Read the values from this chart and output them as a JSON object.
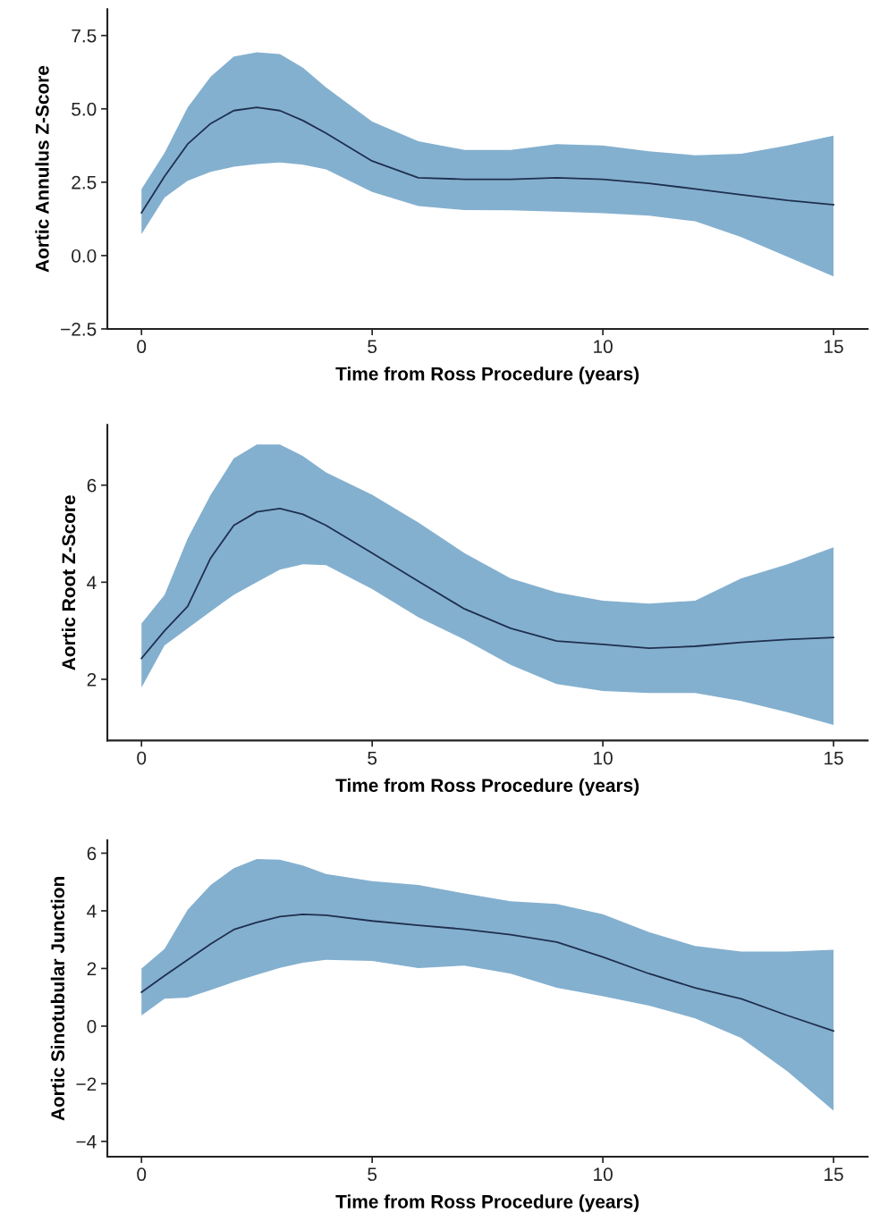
{
  "chart_data": [
    {
      "type": "line",
      "ylabel": "Aortic Annulus Z-Score",
      "xlabel": "Time from Ross Procedure (years)",
      "xlim": [
        -0.74,
        15.74
      ],
      "xticks": [
        0,
        5,
        10,
        15
      ],
      "ylim": [
        -2.5,
        8.4
      ],
      "yticks": [
        {
          "value": -2.5,
          "label": "−2.5"
        },
        {
          "value": 0,
          "label": "0.0"
        },
        {
          "value": 2.5,
          "label": "2.5"
        },
        {
          "value": 5,
          "label": "5.0"
        },
        {
          "value": 7.5,
          "label": "7.5"
        }
      ],
      "grid": false,
      "marker": "none",
      "line_style": "solid",
      "series": [
        {
          "color": "#1f2f4f",
          "x": [
            0,
            0.5,
            1,
            1.5,
            2,
            2.5,
            3,
            3.5,
            4,
            5,
            6,
            7,
            8,
            9,
            10,
            11,
            12,
            13,
            14,
            15
          ],
          "values": [
            1.46,
            2.7,
            3.8,
            4.5,
            4.94,
            5.05,
            4.94,
            4.6,
            4.17,
            3.22,
            2.65,
            2.6,
            2.6,
            2.65,
            2.6,
            2.46,
            2.27,
            2.07,
            1.88,
            1.73
          ],
          "upper": [
            2.27,
            3.5,
            5.05,
            6.1,
            6.78,
            6.93,
            6.87,
            6.4,
            5.73,
            4.57,
            3.9,
            3.6,
            3.6,
            3.8,
            3.75,
            3.55,
            3.42,
            3.47,
            3.75,
            4.09
          ],
          "lower": [
            0.73,
            1.98,
            2.55,
            2.85,
            3.03,
            3.12,
            3.17,
            3.1,
            2.94,
            2.17,
            1.69,
            1.55,
            1.54,
            1.5,
            1.44,
            1.36,
            1.17,
            0.63,
            -0.04,
            -0.71
          ]
        }
      ]
    },
    {
      "type": "line",
      "ylabel": "Aortic Root Z-Score",
      "xlabel": "Time from Ross Procedure (years)",
      "xlim": [
        -0.74,
        15.74
      ],
      "xticks": [
        0,
        5,
        10,
        15
      ],
      "ylim": [
        0.74,
        7.24
      ],
      "yticks": [
        2,
        4,
        6
      ],
      "grid": false,
      "marker": "none",
      "line_style": "solid",
      "series": [
        {
          "color": "#1f2f4f",
          "x": [
            0,
            0.5,
            1,
            1.5,
            2,
            2.5,
            3,
            3.5,
            4,
            5,
            6,
            7,
            8,
            9,
            10,
            11,
            12,
            13,
            14,
            15
          ],
          "values": [
            2.43,
            3.0,
            3.5,
            4.5,
            5.17,
            5.45,
            5.52,
            5.4,
            5.17,
            4.6,
            4.02,
            3.45,
            3.05,
            2.79,
            2.72,
            2.64,
            2.68,
            2.76,
            2.82,
            2.86
          ],
          "upper": [
            3.15,
            3.74,
            4.9,
            5.8,
            6.55,
            6.84,
            6.84,
            6.6,
            6.26,
            5.8,
            5.23,
            4.6,
            4.08,
            3.79,
            3.62,
            3.56,
            3.62,
            4.08,
            4.37,
            4.72
          ],
          "lower": [
            1.83,
            2.7,
            3.05,
            3.4,
            3.74,
            4.0,
            4.26,
            4.37,
            4.35,
            3.86,
            3.28,
            2.82,
            2.3,
            1.9,
            1.76,
            1.72,
            1.72,
            1.55,
            1.32,
            1.06
          ]
        }
      ]
    },
    {
      "type": "line",
      "ylabel": "Aortic Sinotubular Junction",
      "xlabel": "Time from Ross Procedure (years)",
      "xlim": [
        -0.74,
        15.74
      ],
      "xticks": [
        0,
        5,
        10,
        15
      ],
      "ylim": [
        -4.53,
        6.45
      ],
      "yticks": [
        {
          "value": -4,
          "label": "−4"
        },
        {
          "value": -2,
          "label": "−2"
        },
        0,
        2,
        4,
        6
      ],
      "grid": false,
      "marker": "none",
      "line_style": "solid",
      "series": [
        {
          "color": "#1f2f4f",
          "x": [
            0,
            0.5,
            1,
            1.5,
            2,
            2.5,
            3,
            3.5,
            4,
            5,
            6,
            7,
            8,
            9,
            10,
            11,
            12,
            13,
            14,
            15
          ],
          "values": [
            1.18,
            1.75,
            2.3,
            2.85,
            3.35,
            3.6,
            3.8,
            3.88,
            3.85,
            3.65,
            3.5,
            3.36,
            3.17,
            2.92,
            2.4,
            1.82,
            1.33,
            0.95,
            0.37,
            -0.17
          ],
          "upper": [
            2.0,
            2.68,
            4.04,
            4.9,
            5.48,
            5.8,
            5.77,
            5.57,
            5.28,
            5.03,
            4.9,
            4.6,
            4.33,
            4.24,
            3.88,
            3.26,
            2.78,
            2.59,
            2.59,
            2.65
          ],
          "lower": [
            0.37,
            0.95,
            0.99,
            1.25,
            1.53,
            1.78,
            2.02,
            2.2,
            2.3,
            2.26,
            2.01,
            2.1,
            1.82,
            1.33,
            1.04,
            0.71,
            0.27,
            -0.41,
            -1.57,
            -2.93
          ]
        }
      ]
    }
  ]
}
